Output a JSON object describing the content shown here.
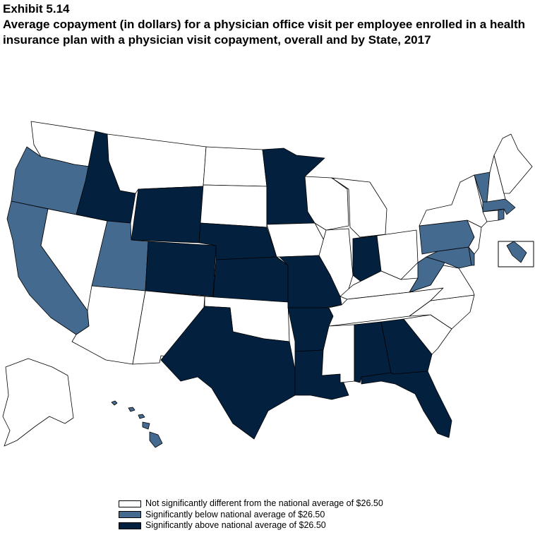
{
  "header": {
    "exhibit": "Exhibit 5.14",
    "title": "Average copayment (in dollars) for a physician office visit per employee enrolled in a health insurance plan with a physician visit copayment, overall and by State, 2017"
  },
  "colors": {
    "not_significant": "#ffffff",
    "below": "#446a8f",
    "above": "#03213f",
    "outline": "#000000"
  },
  "legend": [
    {
      "key": "not_significant",
      "label": "Not significantly different from the national average of $26.50"
    },
    {
      "key": "below",
      "label": "Significantly below national average of $26.50"
    },
    {
      "key": "above",
      "label": "Significantly above national average of $26.50"
    }
  ],
  "states": {
    "WA": "not_significant",
    "OR": "below",
    "CA": "below",
    "NV": "not_significant",
    "ID": "above",
    "MT": "not_significant",
    "WY": "above",
    "UT": "below",
    "AZ": "not_significant",
    "CO": "above",
    "NM": "not_significant",
    "ND": "not_significant",
    "SD": "not_significant",
    "NE": "above",
    "KS": "above",
    "OK": "not_significant",
    "TX": "above",
    "MN": "above",
    "IA": "not_significant",
    "MO": "above",
    "AR": "above",
    "LA": "above",
    "WI": "not_significant",
    "IL": "not_significant",
    "MI": "not_significant",
    "IN": "above",
    "OH": "not_significant",
    "KY": "not_significant",
    "TN": "not_significant",
    "MS": "not_significant",
    "AL": "above",
    "GA": "above",
    "FL": "above",
    "SC": "not_significant",
    "NC": "not_significant",
    "VA": "not_significant",
    "WV": "below",
    "MD": "below",
    "DE": "below",
    "PA": "below",
    "NJ": "not_significant",
    "NY": "not_significant",
    "CT": "not_significant",
    "RI": "below",
    "MA": "below",
    "VT": "below",
    "NH": "not_significant",
    "ME": "not_significant",
    "AK": "not_significant",
    "HI": "below",
    "DC": "below"
  }
}
